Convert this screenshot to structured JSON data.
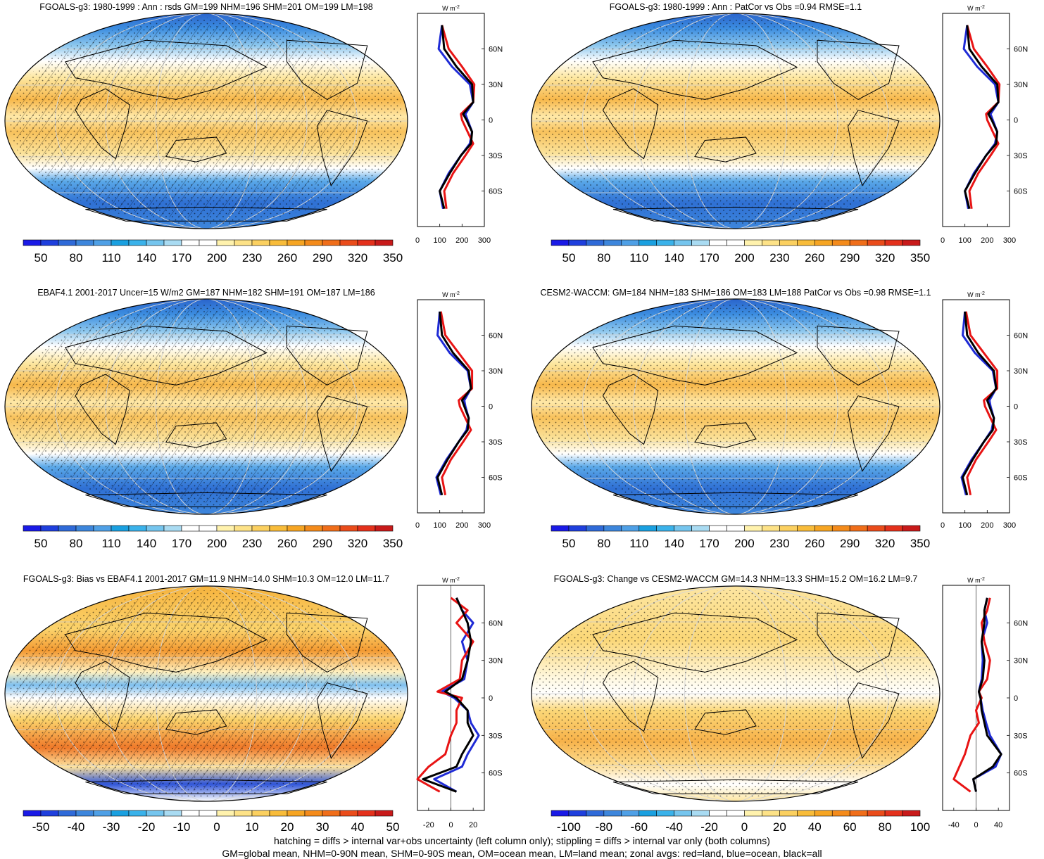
{
  "panels": [
    {
      "title": "FGOALS-g3: 1980-1999 : Ann : rsds GM=199 NHM=196 SHM=201 OM=199 LM=198",
      "colorbar": {
        "labels": [
          "50",
          "80",
          "110",
          "140",
          "170",
          "200",
          "230",
          "260",
          "290",
          "320",
          "350"
        ],
        "kind": "abs"
      },
      "zonal_ticks": [
        "0",
        "100",
        "200",
        "300"
      ],
      "hatching": true
    },
    {
      "title": "FGOALS-g3: 1980-1999 : Ann : PatCor vs Obs =0.94 RMSE=1.1",
      "colorbar": {
        "labels": [
          "50",
          "80",
          "110",
          "140",
          "170",
          "200",
          "230",
          "260",
          "290",
          "320",
          "350"
        ],
        "kind": "abs"
      },
      "zonal_ticks": [
        "0",
        "100",
        "200",
        "300"
      ],
      "hatching": false
    },
    {
      "title": "EBAF4.1 2001-2017 Uncer=15 W/m2 GM=187 NHM=182 SHM=191 OM=187 LM=186",
      "colorbar": {
        "labels": [
          "50",
          "80",
          "110",
          "140",
          "170",
          "200",
          "230",
          "260",
          "290",
          "320",
          "350"
        ],
        "kind": "abs"
      },
      "zonal_ticks": [
        "0",
        "100",
        "200",
        "300"
      ],
      "hatching": true
    },
    {
      "title": "CESM2-WACCM: GM=184 NHM=183 SHM=186 OM=183 LM=188 PatCor vs Obs =0.98 RMSE=1.1",
      "colorbar": {
        "labels": [
          "50",
          "80",
          "110",
          "140",
          "170",
          "200",
          "230",
          "260",
          "290",
          "320",
          "350"
        ],
        "kind": "abs"
      },
      "zonal_ticks": [
        "0",
        "100",
        "200",
        "300"
      ],
      "hatching": false
    },
    {
      "title": "FGOALS-g3: Bias vs EBAF4.1 2001-2017 GM=11.9 NHM=14.0 SHM=10.3 OM=12.0 LM=11.7",
      "colorbar": {
        "labels": [
          "-50",
          "-40",
          "-30",
          "-20",
          "-10",
          "0",
          "10",
          "20",
          "30",
          "40",
          "50"
        ],
        "kind": "diff"
      },
      "zonal_ticks": [
        "-20",
        "0",
        "20"
      ],
      "hatching": true
    },
    {
      "title": "FGOALS-g3: Change vs CESM2-WACCM GM=14.3 NHM=13.3 SHM=15.2 OM=16.2 LM=9.7",
      "colorbar": {
        "labels": [
          "-100",
          "-80",
          "-60",
          "-40",
          "-20",
          "0",
          "20",
          "40",
          "60",
          "80",
          "100"
        ],
        "kind": "diff"
      },
      "zonal_ticks": [
        "-40",
        "0",
        "40"
      ],
      "hatching": false
    }
  ],
  "zonal_unit": "W m",
  "zonal_unit_exp": "-2",
  "lat_labels": [
    "60N",
    "30N",
    "0",
    "30S",
    "60S"
  ],
  "footnote_line1": "hatching = diffs > internal var+obs uncertainty (left column only); stippling = diffs > internal var only (both columns)",
  "footnote_line2": "GM=global mean, NHM=0-90N mean, SHM=0-90S mean, OM=ocean mean, LM=land mean; zonal avgs: red=land, blue=ocean, black=all",
  "chart_data": [
    {
      "type": "heatmap",
      "title": "FGOALS-g3: 1980-1999 : Ann : rsds GM=199 NHM=196 SHM=201 OM=199 LM=198",
      "colorbar_ticks": [
        50,
        80,
        110,
        140,
        170,
        200,
        230,
        260,
        290,
        320,
        350
      ],
      "zonal_mean": {
        "lat": [
          80,
          60,
          45,
          30,
          15,
          5,
          0,
          -10,
          -20,
          -30,
          -45,
          -60,
          -75
        ],
        "all": [
          110,
          120,
          175,
          245,
          250,
          205,
          220,
          245,
          240,
          195,
          145,
          100,
          120
        ],
        "land": [
          110,
          140,
          200,
          255,
          250,
          195,
          200,
          225,
          250,
          215,
          160,
          120,
          130
        ],
        "ocean": [
          110,
          95,
          155,
          235,
          250,
          215,
          225,
          245,
          235,
          195,
          140,
          100,
          115
        ],
        "xlim": [
          0,
          300
        ]
      }
    },
    {
      "type": "heatmap",
      "title": "FGOALS-g3: 1980-1999 : Ann : PatCor vs Obs =0.94 RMSE=1.1",
      "colorbar_ticks": [
        50,
        80,
        110,
        140,
        170,
        200,
        230,
        260,
        290,
        320,
        350
      ],
      "zonal_mean": {
        "lat": [
          80,
          60,
          45,
          30,
          15,
          5,
          0,
          -10,
          -20,
          -30,
          -45,
          -60,
          -75
        ],
        "all": [
          110,
          120,
          175,
          245,
          250,
          205,
          220,
          245,
          240,
          195,
          145,
          100,
          120
        ],
        "land": [
          110,
          140,
          200,
          255,
          250,
          195,
          200,
          225,
          250,
          215,
          160,
          120,
          130
        ],
        "ocean": [
          110,
          95,
          155,
          235,
          250,
          215,
          225,
          245,
          235,
          195,
          140,
          100,
          115
        ],
        "xlim": [
          0,
          300
        ]
      }
    },
    {
      "type": "heatmap",
      "title": "EBAF4.1 2001-2017 Uncer=15 W/m2 GM=187 NHM=182 SHM=191 OM=187 LM=186",
      "colorbar_ticks": [
        50,
        80,
        110,
        140,
        170,
        200,
        230,
        260,
        290,
        320,
        350
      ],
      "zonal_mean": {
        "lat": [
          80,
          60,
          45,
          30,
          15,
          5,
          0,
          -10,
          -20,
          -30,
          -45,
          -60,
          -75
        ],
        "all": [
          100,
          110,
          160,
          230,
          240,
          200,
          210,
          230,
          225,
          185,
          135,
          90,
          110
        ],
        "land": [
          105,
          125,
          185,
          245,
          245,
          185,
          190,
          215,
          240,
          205,
          150,
          110,
          125
        ],
        "ocean": [
          100,
          90,
          145,
          225,
          240,
          210,
          215,
          230,
          220,
          185,
          130,
          85,
          105
        ],
        "xlim": [
          0,
          300
        ]
      }
    },
    {
      "type": "heatmap",
      "title": "CESM2-WACCM: GM=184 NHM=183 SHM=186 OM=183 LM=188 PatCor vs Obs =0.98 RMSE=1.1",
      "colorbar_ticks": [
        50,
        80,
        110,
        140,
        170,
        200,
        230,
        260,
        290,
        320,
        350
      ],
      "zonal_mean": {
        "lat": [
          80,
          60,
          45,
          30,
          15,
          5,
          0,
          -10,
          -20,
          -30,
          -45,
          -60,
          -75
        ],
        "all": [
          100,
          110,
          160,
          230,
          240,
          200,
          210,
          230,
          225,
          185,
          135,
          90,
          110
        ],
        "land": [
          105,
          125,
          185,
          245,
          245,
          185,
          190,
          215,
          240,
          205,
          150,
          110,
          125
        ],
        "ocean": [
          100,
          90,
          145,
          225,
          240,
          210,
          215,
          230,
          220,
          185,
          130,
          85,
          105
        ],
        "xlim": [
          0,
          300
        ]
      }
    },
    {
      "type": "heatmap",
      "title": "FGOALS-g3: Bias vs EBAF4.1 2001-2017 GM=11.9 NHM=14.0 SHM=10.3 OM=12.0 LM=11.7",
      "colorbar_ticks": [
        -50,
        -40,
        -30,
        -20,
        -10,
        0,
        10,
        20,
        30,
        40,
        50
      ],
      "zonal_mean": {
        "lat": [
          80,
          70,
          60,
          45,
          30,
          15,
          5,
          0,
          -10,
          -20,
          -30,
          -45,
          -55,
          -65,
          -75
        ],
        "all": [
          5,
          10,
          15,
          18,
          15,
          10,
          -5,
          5,
          15,
          15,
          20,
          10,
          5,
          -25,
          5
        ],
        "land": [
          0,
          15,
          5,
          20,
          10,
          8,
          -12,
          10,
          5,
          5,
          0,
          -5,
          -20,
          -30,
          -10
        ],
        "ocean": [
          5,
          10,
          20,
          10,
          15,
          12,
          -8,
          3,
          15,
          18,
          25,
          15,
          10,
          -15,
          5
        ],
        "xlim": [
          -30,
          30
        ]
      }
    },
    {
      "type": "heatmap",
      "title": "FGOALS-g3: Change vs CESM2-WACCM GM=14.3 NHM=13.3 SHM=15.2 OM=16.2 LM=9.7",
      "colorbar_ticks": [
        -100,
        -80,
        -60,
        -40,
        -20,
        0,
        20,
        40,
        60,
        80,
        100
      ],
      "zonal_mean": {
        "lat": [
          80,
          70,
          60,
          45,
          30,
          15,
          5,
          0,
          -10,
          -20,
          -30,
          -45,
          -55,
          -65,
          -75
        ],
        "all": [
          20,
          15,
          15,
          10,
          15,
          12,
          5,
          8,
          10,
          15,
          20,
          45,
          30,
          -5,
          0
        ],
        "land": [
          25,
          20,
          10,
          15,
          25,
          20,
          5,
          10,
          0,
          5,
          -10,
          -20,
          -30,
          -40,
          -10
        ],
        "ocean": [
          20,
          15,
          20,
          10,
          12,
          10,
          5,
          8,
          12,
          18,
          25,
          45,
          35,
          -5,
          0
        ],
        "xlim": [
          -60,
          60
        ]
      }
    }
  ]
}
